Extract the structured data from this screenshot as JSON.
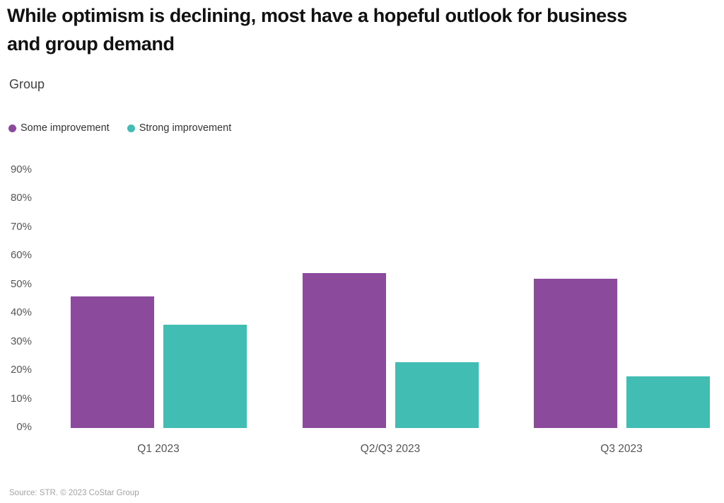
{
  "header": {
    "title": "While optimism is declining, most have a hopeful outlook for business and group demand",
    "title_lines": [
      "While optimism is declining, most have a hopeful outlook for business",
      "and group demand"
    ],
    "subtitle": "Group"
  },
  "legend": {
    "items": [
      {
        "label": "Some improvement",
        "color": "#8b4a9c"
      },
      {
        "label": "Strong improvement",
        "color": "#41bdb4"
      }
    ]
  },
  "footer": {
    "source": "Source: STR. © 2023 CoStar Group"
  },
  "colors": {
    "series_some_improvement": "#8b4a9c",
    "series_strong_improvement": "#41bdb4",
    "title_text": "#111111",
    "axis_text": "#565656",
    "source_text": "#a3a3a3"
  },
  "chart_data": {
    "type": "bar",
    "title": "While optimism is declining, most have a hopeful outlook for business and group demand",
    "subtitle": "Group",
    "categories": [
      "Q1 2023",
      "Q2/Q3 2023",
      "Q3 2023"
    ],
    "series": [
      {
        "name": "Some improvement",
        "color": "#8b4a9c",
        "values": [
          46,
          54,
          52
        ]
      },
      {
        "name": "Strong improvement",
        "color": "#41bdb4",
        "values": [
          36,
          23,
          18
        ]
      }
    ],
    "xlabel": "",
    "ylabel": "",
    "ylim": [
      0,
      90
    ],
    "yticks": [
      0,
      10,
      20,
      30,
      40,
      50,
      60,
      70,
      80,
      90
    ],
    "ytick_suffix": "%",
    "grid": false,
    "legend_position": "top-left"
  }
}
